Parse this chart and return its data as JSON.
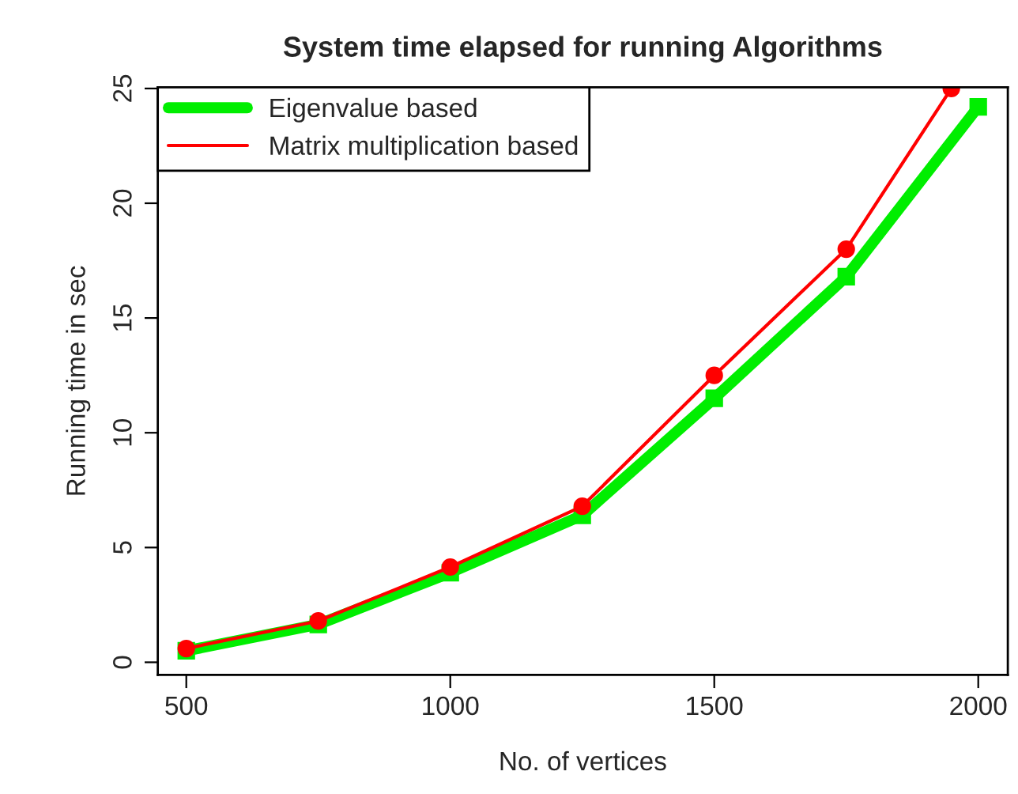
{
  "chart_data": {
    "type": "line",
    "title": "System time elapsed for running Algorithms",
    "xlabel": "No. of vertices",
    "ylabel": "Running time in sec",
    "xlim": [
      446,
      2056
    ],
    "ylim": [
      -0.55,
      25.05
    ],
    "xticks": [
      500,
      1000,
      1500,
      2000
    ],
    "yticks": [
      0,
      5,
      10,
      15,
      20,
      25
    ],
    "grid": false,
    "legend": "top left",
    "series": [
      {
        "name": "Eigenvalue based",
        "color": "#00ee00",
        "x": [
          500,
          750,
          1000,
          1250,
          1500,
          1750,
          2000
        ],
        "values": [
          0.5,
          1.65,
          3.9,
          6.4,
          11.5,
          16.8,
          24.2
        ],
        "marker": "square"
      },
      {
        "name": "Matrix multiplication based",
        "color": "#ff0000",
        "x": [
          500,
          750,
          1000,
          1250,
          1500,
          1750,
          1949
        ],
        "values": [
          0.6,
          1.8,
          4.15,
          6.8,
          12.5,
          18.0,
          25.0
        ],
        "marker": "circle"
      }
    ]
  }
}
